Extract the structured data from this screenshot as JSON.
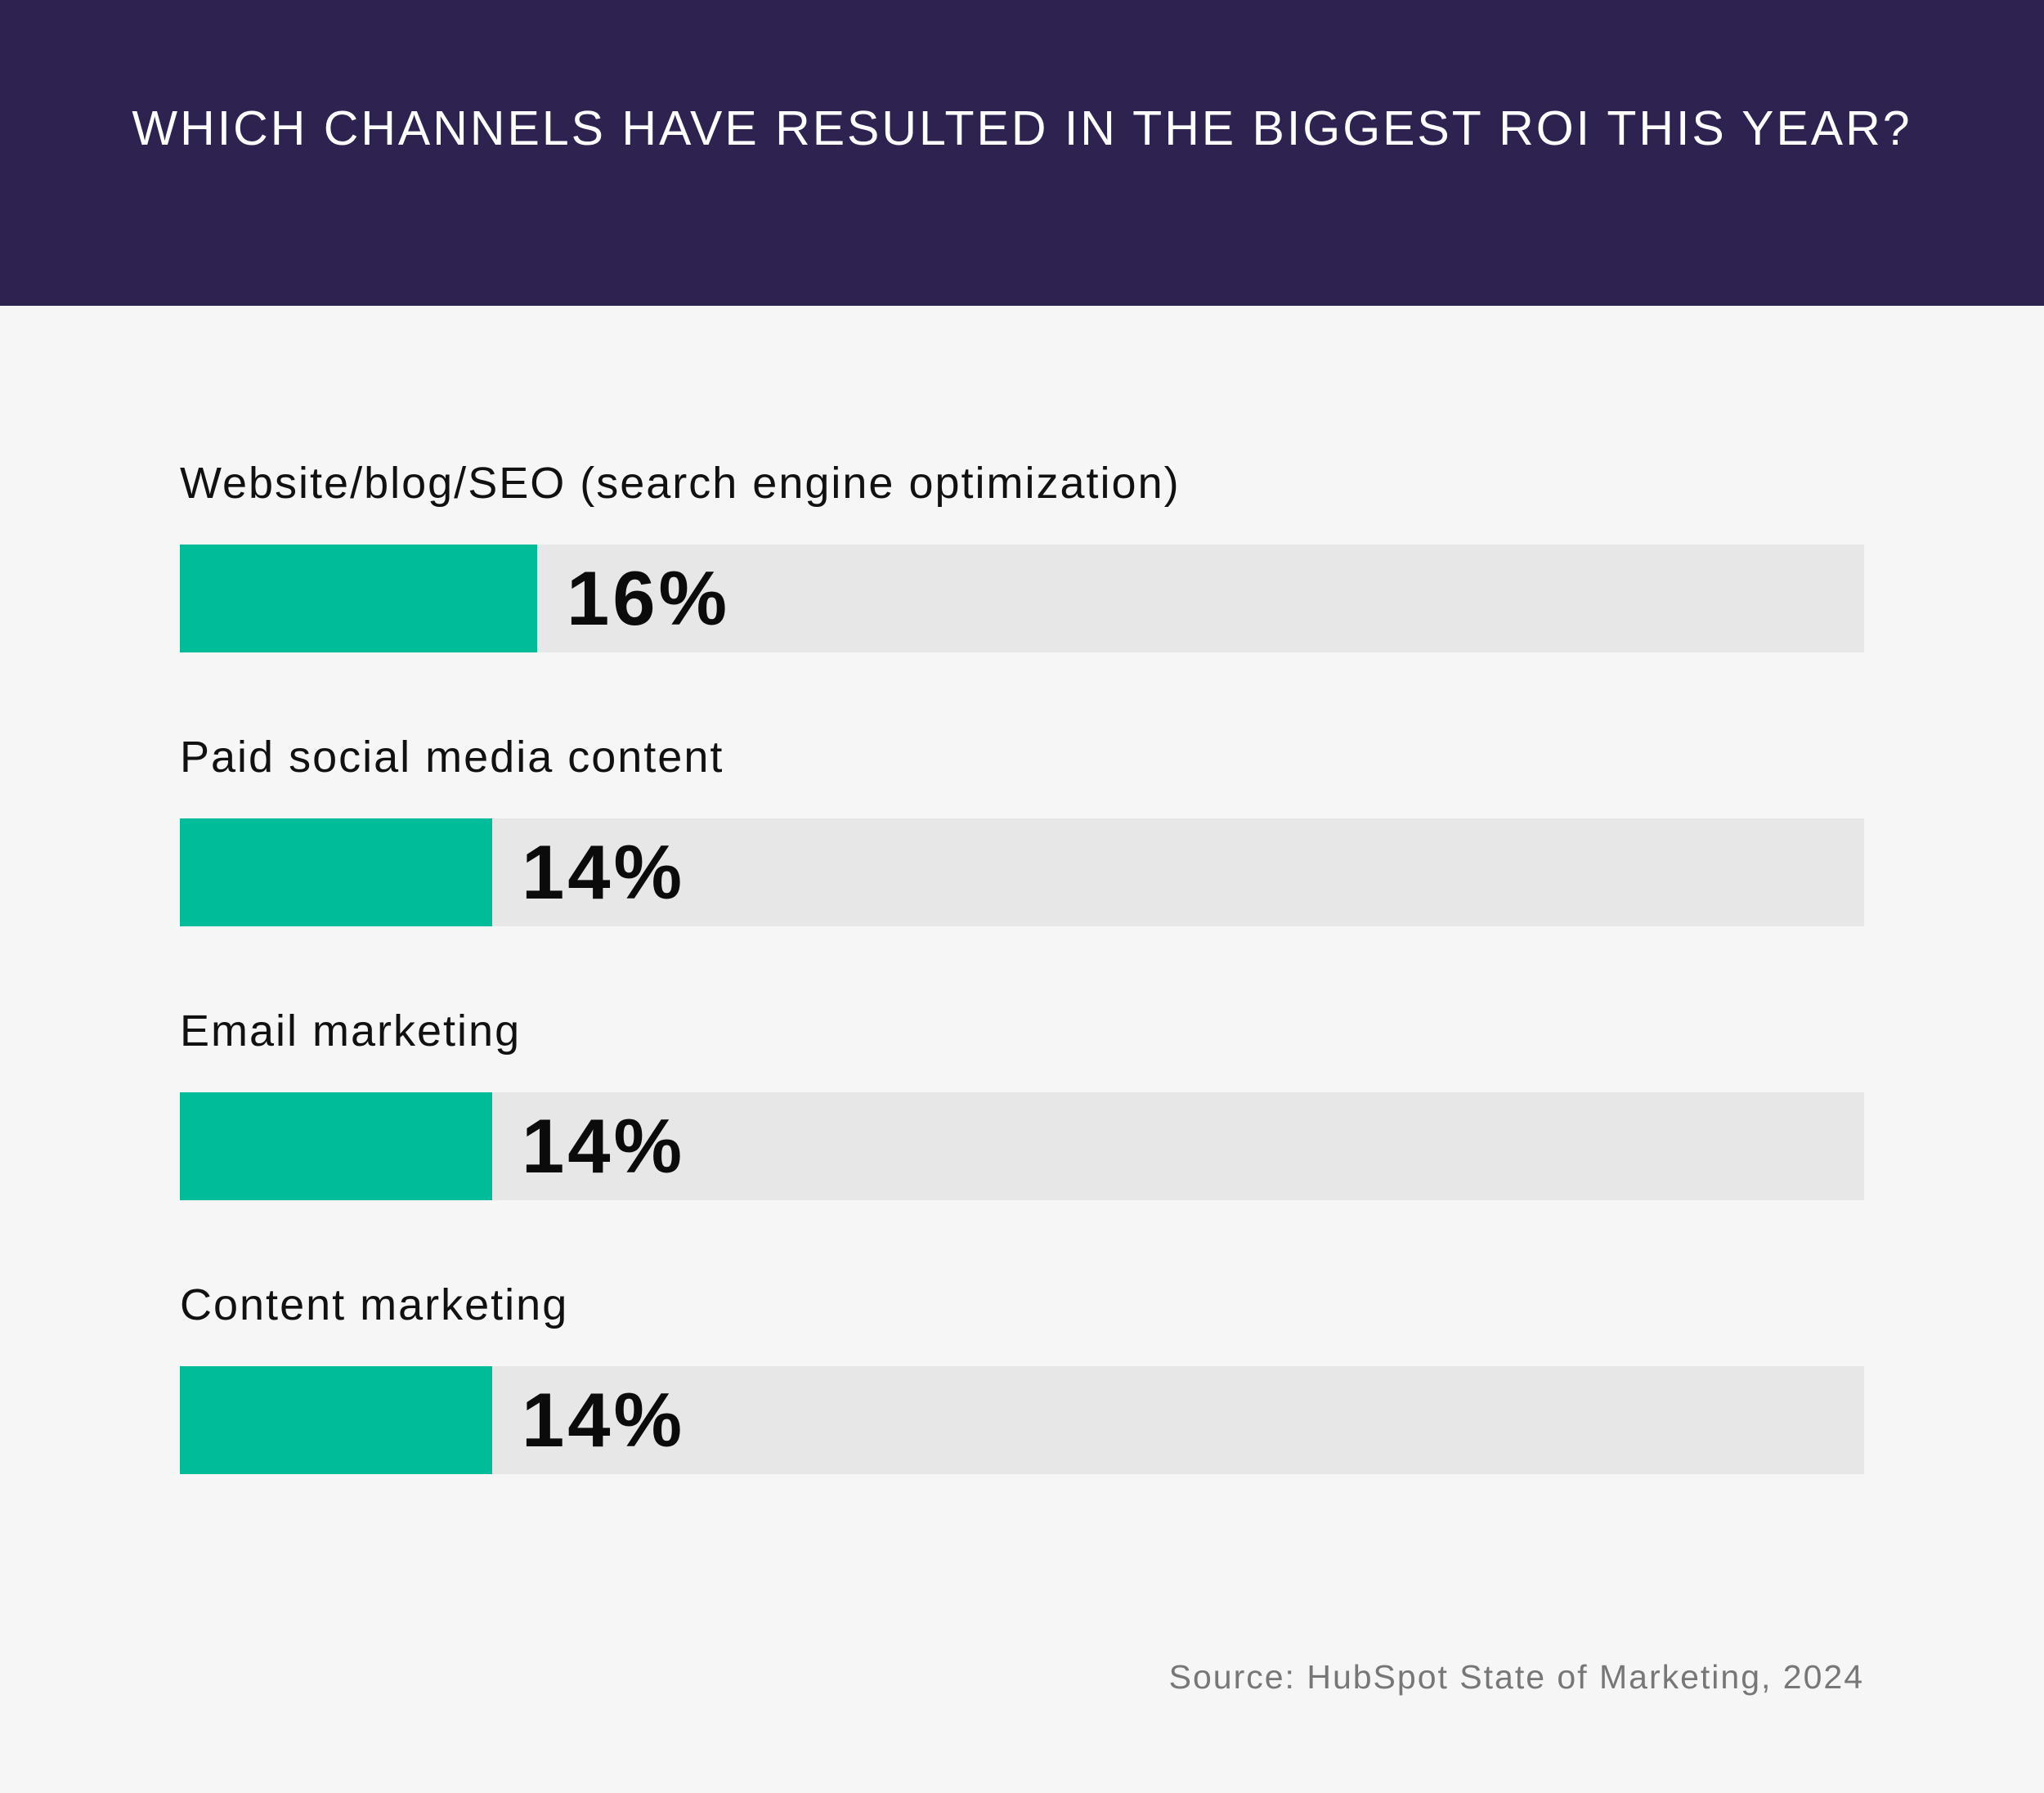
{
  "header": {
    "title": "WHICH CHANNELS HAVE RESULTED IN THE BIGGEST ROI THIS YEAR?"
  },
  "colors": {
    "header_bg": "#2e2350",
    "page_bg": "#f6f6f6",
    "bar_fill": "#00bc98",
    "bar_track": "#e7e7e7"
  },
  "chart_data": {
    "type": "bar",
    "orientation": "horizontal",
    "title": "WHICH CHANNELS HAVE RESULTED IN THE BIGGEST ROI THIS YEAR?",
    "categories": [
      "Website/blog/SEO (search engine optimization)",
      "Paid social media content",
      "Email marketing",
      "Content marketing"
    ],
    "values": [
      16,
      14,
      14,
      14
    ],
    "value_labels": [
      "16%",
      "14%",
      "14%",
      "14%"
    ],
    "unit": "%",
    "xlim": [
      0,
      100
    ],
    "grid": false,
    "legend": "none"
  },
  "footer": {
    "source": "Source: HubSpot State of Marketing, 2024"
  }
}
